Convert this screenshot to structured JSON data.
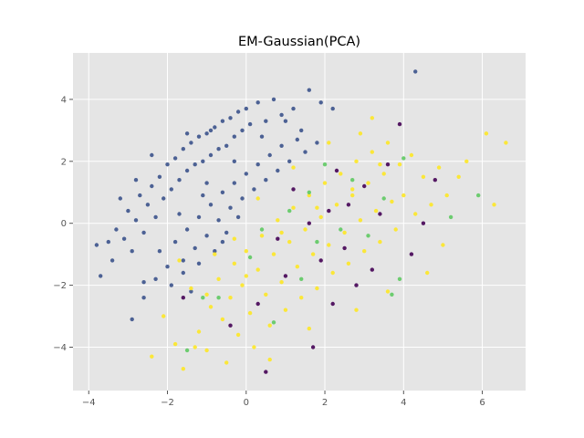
{
  "chart_data": {
    "type": "scatter",
    "title": "EM-Gaussian(PCA)",
    "xlabel": "",
    "ylabel": "",
    "xlim": [
      -4.4,
      7.1
    ],
    "ylim": [
      -5.4,
      5.5
    ],
    "x_ticks": [
      -4,
      -2,
      0,
      2,
      4,
      6
    ],
    "y_ticks": [
      -4,
      -2,
      0,
      2,
      4
    ],
    "x_tick_labels": [
      "−4",
      "−2",
      "0",
      "2",
      "4",
      "6"
    ],
    "y_tick_labels": [
      "−4",
      "−2",
      "0",
      "2",
      "4"
    ],
    "grid": true,
    "legend": false,
    "background_color": "#e5e5e5",
    "grid_color": "#ffffff",
    "series": [
      {
        "color": "#3b528b",
        "points": [
          [
            -3.8,
            -0.7
          ],
          [
            -3.7,
            -1.7
          ],
          [
            -3.5,
            -0.6
          ],
          [
            -3.4,
            -1.2
          ],
          [
            -3.3,
            -0.2
          ],
          [
            -3.1,
            -0.5
          ],
          [
            -3.0,
            0.4
          ],
          [
            -2.9,
            -0.9
          ],
          [
            -2.8,
            0.1
          ],
          [
            -2.7,
            0.9
          ],
          [
            -2.6,
            -0.3
          ],
          [
            -2.5,
            0.6
          ],
          [
            -2.4,
            1.2
          ],
          [
            -2.3,
            0.2
          ],
          [
            -2.2,
            1.5
          ],
          [
            -2.1,
            0.8
          ],
          [
            -2.0,
            1.9
          ],
          [
            -1.9,
            1.1
          ],
          [
            -1.8,
            2.1
          ],
          [
            -1.7,
            1.4
          ],
          [
            -1.6,
            2.4
          ],
          [
            -1.5,
            1.7
          ],
          [
            -1.4,
            2.6
          ],
          [
            -1.3,
            1.9
          ],
          [
            -1.2,
            2.8
          ],
          [
            -1.1,
            2.0
          ],
          [
            -1.0,
            2.9
          ],
          [
            -0.9,
            2.2
          ],
          [
            -0.8,
            3.1
          ],
          [
            -0.7,
            2.4
          ],
          [
            -0.6,
            3.3
          ],
          [
            -0.5,
            2.5
          ],
          [
            -0.4,
            3.4
          ],
          [
            -0.3,
            2.8
          ],
          [
            -0.2,
            3.6
          ],
          [
            -0.1,
            3.0
          ],
          [
            0.0,
            3.7
          ],
          [
            0.1,
            3.2
          ],
          [
            0.3,
            3.9
          ],
          [
            0.5,
            3.3
          ],
          [
            0.7,
            4.0
          ],
          [
            0.9,
            3.5
          ],
          [
            1.2,
            3.7
          ],
          [
            1.6,
            4.3
          ],
          [
            1.9,
            3.9
          ],
          [
            2.2,
            3.7
          ],
          [
            4.3,
            4.9
          ],
          [
            -2.2,
            -0.9
          ],
          [
            -2.0,
            -1.4
          ],
          [
            -1.8,
            -0.6
          ],
          [
            -1.6,
            -1.2
          ],
          [
            -1.5,
            -0.2
          ],
          [
            -1.3,
            -0.8
          ],
          [
            -1.2,
            0.2
          ],
          [
            -1.0,
            -0.4
          ],
          [
            -0.9,
            0.6
          ],
          [
            -0.7,
            0.1
          ],
          [
            -0.6,
            1.0
          ],
          [
            -0.4,
            0.5
          ],
          [
            -0.3,
            1.3
          ],
          [
            -0.1,
            0.8
          ],
          [
            0.0,
            1.6
          ],
          [
            0.2,
            1.1
          ],
          [
            0.3,
            1.9
          ],
          [
            0.5,
            1.4
          ],
          [
            0.6,
            2.2
          ],
          [
            0.8,
            1.7
          ],
          [
            0.9,
            2.5
          ],
          [
            1.1,
            2.0
          ],
          [
            1.3,
            2.7
          ],
          [
            1.5,
            2.3
          ],
          [
            1.8,
            2.6
          ],
          [
            -2.6,
            -2.4
          ],
          [
            -2.3,
            -1.8
          ],
          [
            -1.9,
            -2.0
          ],
          [
            -1.6,
            -1.6
          ],
          [
            -2.9,
            -3.1
          ],
          [
            -1.2,
            -1.3
          ],
          [
            -1.4,
            -2.2
          ],
          [
            -0.8,
            -0.9
          ],
          [
            -0.5,
            -0.3
          ],
          [
            -0.2,
            0.2
          ],
          [
            -1.0,
            1.3
          ],
          [
            -1.5,
            2.9
          ],
          [
            -0.9,
            3.0
          ],
          [
            -2.4,
            2.2
          ],
          [
            -2.8,
            1.4
          ],
          [
            -3.2,
            0.8
          ],
          [
            -2.6,
            -1.9
          ],
          [
            -1.1,
            0.9
          ],
          [
            -0.3,
            2.0
          ],
          [
            0.4,
            2.8
          ],
          [
            1.0,
            3.3
          ],
          [
            1.4,
            3.0
          ],
          [
            -1.7,
            0.3
          ],
          [
            -0.6,
            -0.6
          ]
        ]
      },
      {
        "color": "#fde725",
        "points": [
          [
            -2.4,
            -4.3
          ],
          [
            -2.1,
            -3.0
          ],
          [
            -1.8,
            -3.9
          ],
          [
            -1.6,
            -4.7
          ],
          [
            -1.4,
            -2.1
          ],
          [
            -1.2,
            -3.5
          ],
          [
            -1.0,
            -4.1
          ],
          [
            -0.9,
            -2.7
          ],
          [
            -0.7,
            -1.8
          ],
          [
            -0.6,
            -3.1
          ],
          [
            -0.5,
            -4.5
          ],
          [
            -0.4,
            -2.4
          ],
          [
            -0.3,
            -1.3
          ],
          [
            -0.2,
            -3.6
          ],
          [
            -0.1,
            -2.0
          ],
          [
            0.0,
            -0.9
          ],
          [
            0.1,
            -2.9
          ],
          [
            0.2,
            -4.0
          ],
          [
            0.3,
            -1.5
          ],
          [
            0.4,
            -0.4
          ],
          [
            0.5,
            -2.3
          ],
          [
            0.6,
            -3.3
          ],
          [
            0.7,
            -1.0
          ],
          [
            0.8,
            0.1
          ],
          [
            0.9,
            -1.9
          ],
          [
            1.0,
            -2.8
          ],
          [
            1.1,
            -0.6
          ],
          [
            1.2,
            0.5
          ],
          [
            1.3,
            -1.4
          ],
          [
            1.4,
            -2.4
          ],
          [
            1.5,
            -0.2
          ],
          [
            1.6,
            0.9
          ],
          [
            1.7,
            -1.0
          ],
          [
            1.8,
            -2.1
          ],
          [
            1.9,
            0.2
          ],
          [
            2.0,
            1.3
          ],
          [
            2.1,
            -0.7
          ],
          [
            2.2,
            -1.6
          ],
          [
            2.3,
            0.6
          ],
          [
            2.4,
            1.6
          ],
          [
            2.5,
            -0.3
          ],
          [
            2.6,
            -1.3
          ],
          [
            2.7,
            0.9
          ],
          [
            2.8,
            2.0
          ],
          [
            2.9,
            0.1
          ],
          [
            3.0,
            -0.9
          ],
          [
            3.1,
            1.3
          ],
          [
            3.2,
            2.3
          ],
          [
            3.3,
            0.4
          ],
          [
            3.4,
            -0.6
          ],
          [
            3.5,
            1.6
          ],
          [
            3.6,
            2.6
          ],
          [
            3.7,
            0.7
          ],
          [
            3.8,
            -0.2
          ],
          [
            3.9,
            1.9
          ],
          [
            4.0,
            0.9
          ],
          [
            4.2,
            2.2
          ],
          [
            4.3,
            0.3
          ],
          [
            4.5,
            1.5
          ],
          [
            4.7,
            0.6
          ],
          [
            4.9,
            1.8
          ],
          [
            5.1,
            0.9
          ],
          [
            5.4,
            1.5
          ],
          [
            5.6,
            2.0
          ],
          [
            6.1,
            2.9
          ],
          [
            6.3,
            0.6
          ],
          [
            6.6,
            2.6
          ],
          [
            5.0,
            -0.7
          ],
          [
            4.6,
            -1.6
          ],
          [
            3.6,
            -2.2
          ],
          [
            2.8,
            -2.8
          ],
          [
            1.6,
            -3.4
          ],
          [
            0.6,
            -4.4
          ],
          [
            -1.3,
            -4.0
          ],
          [
            -0.8,
            -1.0
          ],
          [
            0.0,
            -1.7
          ],
          [
            0.9,
            -0.3
          ],
          [
            1.8,
            0.5
          ],
          [
            2.7,
            1.1
          ],
          [
            3.4,
            1.9
          ],
          [
            -0.3,
            -0.5
          ],
          [
            0.3,
            0.8
          ],
          [
            1.2,
            1.8
          ],
          [
            2.1,
            2.6
          ],
          [
            2.9,
            2.9
          ],
          [
            3.2,
            3.4
          ],
          [
            -1.7,
            -1.2
          ],
          [
            -1.0,
            -2.3
          ]
        ]
      },
      {
        "color": "#440154",
        "points": [
          [
            0.3,
            -2.6
          ],
          [
            0.8,
            -0.5
          ],
          [
            1.2,
            1.1
          ],
          [
            1.6,
            0.0
          ],
          [
            1.9,
            -1.2
          ],
          [
            2.1,
            0.4
          ],
          [
            2.3,
            1.7
          ],
          [
            2.5,
            -0.8
          ],
          [
            2.6,
            0.6
          ],
          [
            2.8,
            -2.0
          ],
          [
            3.0,
            1.2
          ],
          [
            3.2,
            -1.5
          ],
          [
            3.4,
            0.3
          ],
          [
            3.6,
            1.9
          ],
          [
            3.9,
            3.2
          ],
          [
            4.2,
            -1.0
          ],
          [
            4.5,
            0.0
          ],
          [
            4.8,
            1.4
          ],
          [
            0.5,
            -4.8
          ],
          [
            1.7,
            -4.0
          ],
          [
            -0.4,
            -3.3
          ],
          [
            -1.6,
            -2.4
          ],
          [
            2.2,
            -2.6
          ],
          [
            1.0,
            -1.7
          ]
        ]
      },
      {
        "color": "#5ec962",
        "points": [
          [
            -1.5,
            -4.1
          ],
          [
            -0.7,
            -2.4
          ],
          [
            0.1,
            -1.1
          ],
          [
            0.7,
            -3.2
          ],
          [
            1.1,
            0.4
          ],
          [
            1.4,
            -1.8
          ],
          [
            1.8,
            -0.6
          ],
          [
            2.0,
            1.9
          ],
          [
            2.4,
            -0.2
          ],
          [
            2.7,
            1.4
          ],
          [
            3.1,
            -0.4
          ],
          [
            3.5,
            0.8
          ],
          [
            3.7,
            -2.3
          ],
          [
            4.0,
            2.1
          ],
          [
            5.2,
            0.2
          ],
          [
            5.9,
            0.9
          ],
          [
            3.9,
            -1.8
          ],
          [
            -1.1,
            -2.4
          ],
          [
            0.4,
            -0.2
          ],
          [
            1.6,
            1.0
          ]
        ]
      }
    ]
  }
}
